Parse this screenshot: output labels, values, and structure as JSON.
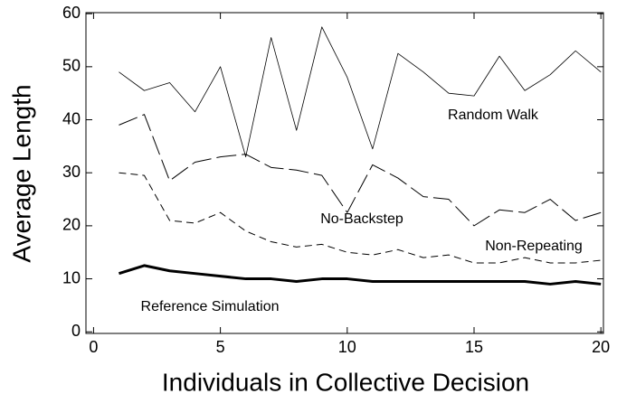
{
  "chart_data": {
    "type": "line",
    "x_label": "Individuals in Collective Decision",
    "y_label": "Average Length",
    "x": [
      1,
      2,
      3,
      4,
      5,
      6,
      7,
      8,
      9,
      10,
      11,
      12,
      13,
      14,
      15,
      16,
      17,
      18,
      19,
      20
    ],
    "series": [
      {
        "name": "Random Walk",
        "color": "#000000",
        "style": "thin",
        "values": [
          49,
          45.5,
          47,
          41.5,
          50,
          33,
          55.5,
          38,
          57.5,
          48,
          34.5,
          52.5,
          49,
          45,
          44.5,
          52,
          45.5,
          48.5,
          53,
          49
        ]
      },
      {
        "name": "No-Backstep",
        "color": "#000000",
        "style": "long-dash",
        "values": [
          39,
          41,
          28.5,
          32,
          33,
          33.5,
          31,
          30.5,
          29.5,
          22.5,
          31.5,
          29,
          25.5,
          25,
          20,
          23,
          22.5,
          25,
          21,
          22.5
        ]
      },
      {
        "name": "Non-Repeating",
        "color": "#000000",
        "style": "short-dash",
        "values": [
          30,
          29.5,
          21,
          20.5,
          22.5,
          19,
          17,
          16,
          16.5,
          15,
          14.5,
          15.5,
          14,
          14.5,
          13,
          13,
          14,
          13,
          13,
          13.5
        ]
      },
      {
        "name": "Reference Simulation",
        "color": "#000000",
        "style": "thick",
        "values": [
          11,
          12.5,
          11.5,
          11,
          10.5,
          10,
          10,
          9.5,
          10,
          10,
          9.5,
          9.5,
          9.5,
          9.5,
          9.5,
          9.5,
          9.5,
          9,
          9.5,
          9
        ]
      }
    ],
    "xlim": [
      -0.3,
      20.1
    ],
    "ylim": [
      -0.3,
      60.2
    ],
    "xticks": [
      0,
      5,
      10,
      15,
      20
    ],
    "yticks": [
      0,
      10,
      20,
      30,
      40,
      50,
      60
    ]
  }
}
